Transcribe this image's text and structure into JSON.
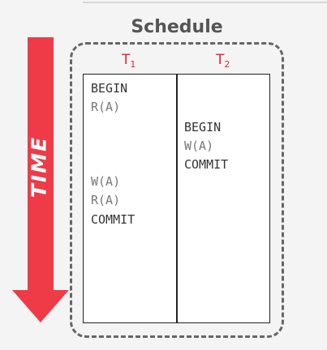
{
  "title": "Schedule",
  "axis_label": "TIME",
  "transactions": [
    {
      "name": "T",
      "subscript": "1"
    },
    {
      "name": "T",
      "subscript": "2"
    }
  ],
  "operations": {
    "t1": [
      "BEGIN",
      "R(A)",
      "W(A)",
      "R(A)",
      "COMMIT"
    ],
    "t2": [
      "BEGIN",
      "W(A)",
      "COMMIT"
    ]
  },
  "colors": {
    "arrow": "#ef3b47",
    "transaction_label": "#e0243a",
    "frame": "#666666"
  }
}
